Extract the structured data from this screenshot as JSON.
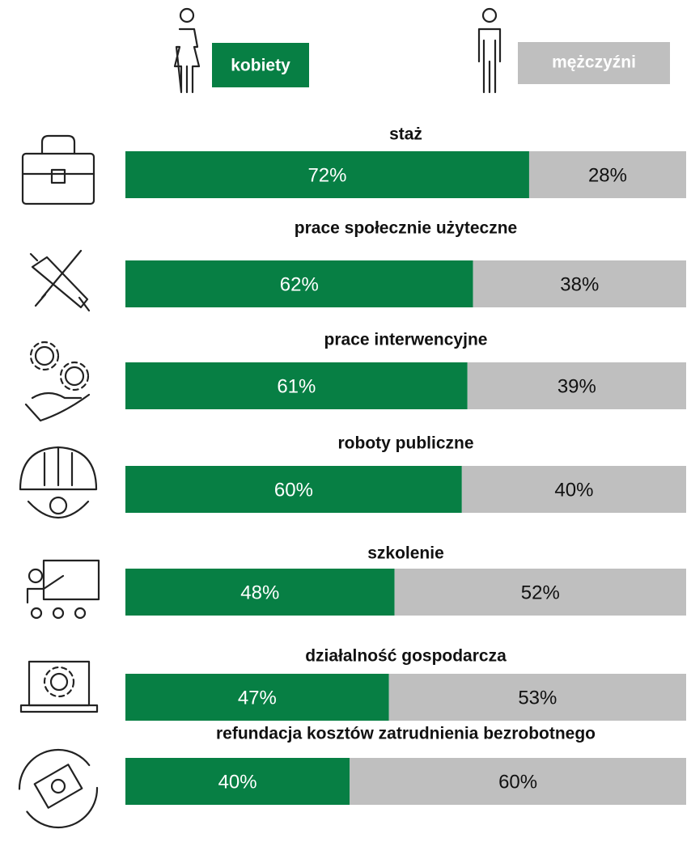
{
  "chart_data": {
    "type": "stacked-bar-100",
    "categories": [
      "staż",
      "prace społecznie użyteczne",
      "prace interwencyjne",
      "roboty publiczne",
      "szkolenie",
      "działalność gospodarcza",
      "refundacja kosztów zatrudnienia bezrobotnego"
    ],
    "series": [
      {
        "name": "kobiety",
        "color": "#077f44",
        "values": [
          72,
          62,
          61,
          60,
          48,
          47,
          40
        ],
        "value_labels": [
          "72%",
          "62%",
          "61%",
          "60%",
          "48%",
          "47%",
          "40%"
        ]
      },
      {
        "name": "mężczyźni",
        "color": "#bfbfbf",
        "values": [
          28,
          38,
          39,
          40,
          52,
          53,
          60
        ],
        "value_labels": [
          "28%",
          "38%",
          "39%",
          "40%",
          "52%",
          "53%",
          "60%"
        ]
      }
    ]
  }
}
